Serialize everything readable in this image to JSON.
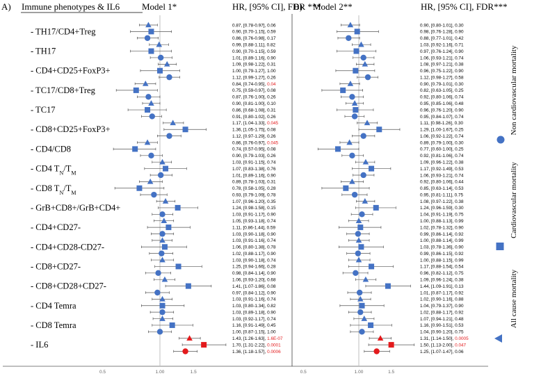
{
  "panels": [
    {
      "letter": "A)",
      "title": "Model 1*",
      "stat_header": "HR, [95% CI], FDR ***",
      "label_header": "Immune phenotypes & IL6"
    },
    {
      "letter": "B)",
      "title": "Model 2**",
      "stat_header": "HR, [95% CI], FDR***"
    }
  ],
  "legend": {
    "non_cv": "Non cardiovascular mortality",
    "cv": "Cardiovascular mortality",
    "all": "All cause mortality"
  },
  "colors": {
    "blue": "#4472c4",
    "red": "#e31a1c",
    "ref_line": "#bfbfbf"
  },
  "chart_data": {
    "type": "forest",
    "xscale": "log",
    "xlim": [
      0.3,
      2.5
    ],
    "ticks": [
      {
        "value": 0.5,
        "label": "0.5"
      },
      {
        "value": 1.0,
        "label": "1.00"
      },
      {
        "value": 1.5,
        "label": "1.5"
      }
    ],
    "reference_line": 1.0,
    "groups": [
      "- TH17/CD4+Treg",
      "- TH17",
      "- CD4+CD25+FoxP3+",
      "- TC17/CD8+Treg",
      "- TC17",
      "- CD8+CD25+FoxP3+",
      "- CD4/CD8",
      "- CD4 TN/TM",
      "- CD8 TN/TM",
      "- GrB+CD8+/GrB+CD4+",
      "- CD4+CD27-",
      "- CD4+CD28-CD27-",
      "- CD8+CD27-",
      "- CD8+CD28+CD27-",
      "- CD4 Temra",
      "- CD8 Temra",
      "- IL6"
    ],
    "row_outcome_order": [
      "non-cardiovascular",
      "cardiovascular",
      "all-cause"
    ],
    "model1": [
      {
        "hr": 0.87,
        "lo": 0.78,
        "hi": 0.97,
        "fdr": "0.06",
        "text": "0.87, [0.78-0.97], 0.06"
      },
      {
        "hr": 0.9,
        "lo": 0.7,
        "hi": 1.15,
        "fdr": "0.59",
        "text": "0.90, [0.70-1.15], 0.59"
      },
      {
        "hr": 0.86,
        "lo": 0.76,
        "hi": 0.98,
        "fdr": "0.17",
        "text": "0.86, [0.76-0.98], 0.17"
      },
      {
        "hr": 0.99,
        "lo": 0.88,
        "hi": 1.11,
        "fdr": "0.82",
        "text": "0.99, [0.88-1.11], 0.82"
      },
      {
        "hr": 0.9,
        "lo": 0.7,
        "hi": 1.15,
        "fdr": "0.59",
        "text": "0.90, [0.70-1.15], 0.59"
      },
      {
        "hr": 1.01,
        "lo": 0.89,
        "hi": 1.16,
        "fdr": "0.90",
        "text": "1.01, [0.89-1.16], 0.90"
      },
      {
        "hr": 1.09,
        "lo": 0.98,
        "hi": 1.22,
        "fdr": "0.31",
        "text": "1.09, [0.98-1.22], 0.31"
      },
      {
        "hr": 1.0,
        "lo": 0.79,
        "hi": 1.27,
        "fdr": "1.00",
        "text": "1.00, [0.79-1.27], 1.00"
      },
      {
        "hr": 1.12,
        "lo": 0.99,
        "hi": 1.27,
        "fdr": "0.26",
        "text": "1.12, [0.99-1.27], 0.26"
      },
      {
        "hr": 0.84,
        "lo": 0.74,
        "hi": 0.95,
        "fdr": "0.04",
        "text": "0.84, [0.74-0.95], ",
        "sig": true
      },
      {
        "hr": 0.75,
        "lo": 0.59,
        "hi": 0.97,
        "fdr": "0.08",
        "text": "0.75, [0.59-0.97], 0.08"
      },
      {
        "hr": 0.87,
        "lo": 0.76,
        "hi": 1.0,
        "fdr": "0.26",
        "text": "0.87, [0.76-1.00], 0.26"
      },
      {
        "hr": 0.9,
        "lo": 0.81,
        "hi": 1.0,
        "fdr": "0.10",
        "text": "0.90, [0.81-1.00], 0.10"
      },
      {
        "hr": 0.86,
        "lo": 0.68,
        "hi": 1.08,
        "fdr": "0.31",
        "text": "0.86, [0.68-1.08], 0.31"
      },
      {
        "hr": 0.91,
        "lo": 0.8,
        "hi": 1.02,
        "fdr": "0.26",
        "text": "0.91, [0.80-1.02], 0.26"
      },
      {
        "hr": 1.17,
        "lo": 1.04,
        "hi": 1.33,
        "fdr": "0.045",
        "text": "1.17, [1.04-1.33], ",
        "sig": true
      },
      {
        "hr": 1.36,
        "lo": 1.05,
        "hi": 1.75,
        "fdr": "0.08",
        "text": "1.36, [1.05-1.75], 0.08"
      },
      {
        "hr": 1.12,
        "lo": 0.97,
        "hi": 1.29,
        "fdr": "0.26",
        "text": "1.12, [0.97-1.29], 0.26"
      },
      {
        "hr": 0.86,
        "lo": 0.76,
        "hi": 0.97,
        "fdr": "0.045",
        "text": "0.86, [0.76-0.97], ",
        "sig": true
      },
      {
        "hr": 0.74,
        "lo": 0.57,
        "hi": 0.95,
        "fdr": "0.08",
        "text": "0.74, [0.57-0.95], 0.08"
      },
      {
        "hr": 0.9,
        "lo": 0.79,
        "hi": 1.03,
        "fdr": "0.26",
        "text": "0.90, [0.79-1.03], 0.26"
      },
      {
        "hr": 1.03,
        "lo": 0.91,
        "hi": 1.15,
        "fdr": "0.74",
        "text": "1.03, [0.91-1.15], 0.74"
      },
      {
        "hr": 1.07,
        "lo": 0.83,
        "hi": 1.38,
        "fdr": "0.76",
        "text": "1.07, [0.83-1.38], 0.76"
      },
      {
        "hr": 1.01,
        "lo": 0.89,
        "hi": 1.16,
        "fdr": "0.90",
        "text": "1.01, [0.89-1.16], 0.90"
      },
      {
        "hr": 0.89,
        "lo": 0.78,
        "hi": 1.03,
        "fdr": "0.31",
        "text": "0.89, [0.78-1.03], 0.31"
      },
      {
        "hr": 0.78,
        "lo": 0.58,
        "hi": 1.05,
        "fdr": "0.28",
        "text": "0.78, [0.58-1.05], 0.28"
      },
      {
        "hr": 0.93,
        "lo": 0.79,
        "hi": 1.09,
        "fdr": "0.78",
        "text": "0.93, [0.79-1.09], 0.78"
      },
      {
        "hr": 1.07,
        "lo": 0.96,
        "hi": 1.2,
        "fdr": "0.35",
        "text": "1.07, [0.96-1.20], 0.35"
      },
      {
        "hr": 1.24,
        "lo": 0.98,
        "hi": 1.58,
        "fdr": "0.15",
        "text": "1.24, [0.98-1.58], 0.15"
      },
      {
        "hr": 1.03,
        "lo": 0.91,
        "hi": 1.17,
        "fdr": "0.90",
        "text": "1.03, [0.91-1.17], 0.90"
      },
      {
        "hr": 1.05,
        "lo": 0.93,
        "hi": 1.18,
        "fdr": "0.74",
        "text": "1.05, [0.93-1.18], 0.74"
      },
      {
        "hr": 1.11,
        "lo": 0.86,
        "hi": 1.44,
        "fdr": "0.59",
        "text": "1.11, [0.86-1.44], 0.59"
      },
      {
        "hr": 1.03,
        "lo": 0.9,
        "hi": 1.18,
        "fdr": "0.90",
        "text": "1.03, [0.90-1.18], 0.90"
      },
      {
        "hr": 1.03,
        "lo": 0.91,
        "hi": 1.16,
        "fdr": "0.74",
        "text": "1.03, [0.91-1.16], 0.74"
      },
      {
        "hr": 1.06,
        "lo": 0.8,
        "hi": 1.38,
        "fdr": "0.78",
        "text": "1.06, [0.80-1.38], 0.78"
      },
      {
        "hr": 1.02,
        "lo": 0.88,
        "hi": 1.17,
        "fdr": "0.90",
        "text": "1.02, [0.88-1.17], 0.90"
      },
      {
        "hr": 1.03,
        "lo": 0.9,
        "hi": 1.18,
        "fdr": "0.74",
        "text": "1.03, [0.90-1.18], 0.74"
      },
      {
        "hr": 1.25,
        "lo": 0.94,
        "hi": 1.66,
        "fdr": "0.28",
        "text": "1.25, [0.94-1.66], 0.28"
      },
      {
        "hr": 0.98,
        "lo": 0.84,
        "hi": 1.14,
        "fdr": "0.90",
        "text": "0.98, [0.84-1.14], 0.90"
      },
      {
        "hr": 1.06,
        "lo": 0.93,
        "hi": 1.2,
        "fdr": "0.68",
        "text": "1.06, [0.93-1.20], 0.68"
      },
      {
        "hr": 1.41,
        "lo": 1.07,
        "hi": 1.86,
        "fdr": "0.08",
        "text": "1.41, [1.07-1.86], 0.08"
      },
      {
        "hr": 0.97,
        "lo": 0.84,
        "hi": 1.12,
        "fdr": "0.90",
        "text": "0.97, [0.84-1.12], 0.90"
      },
      {
        "hr": 1.03,
        "lo": 0.91,
        "hi": 1.16,
        "fdr": "0.74",
        "text": "1.03, [0.91-1.16], 0.74"
      },
      {
        "hr": 1.03,
        "lo": 0.8,
        "hi": 1.34,
        "fdr": "0.82",
        "text": "1.03, [0.80-1.34], 0.82"
      },
      {
        "hr": 1.03,
        "lo": 0.89,
        "hi": 1.18,
        "fdr": "0.90",
        "text": "1.03, [0.89-1.18], 0.90"
      },
      {
        "hr": 1.03,
        "lo": 0.92,
        "hi": 1.17,
        "fdr": "0.74",
        "text": "1.03, [0.92-1.17], 0.74"
      },
      {
        "hr": 1.16,
        "lo": 0.91,
        "hi": 1.49,
        "fdr": "0.45",
        "text": "1.16, [0.91-1.49], 0.45"
      },
      {
        "hr": 1.0,
        "lo": 0.87,
        "hi": 1.15,
        "fdr": "1.00",
        "text": "1.00, [0.87-1.15], 1.00"
      },
      {
        "hr": 1.43,
        "lo": 1.26,
        "hi": 1.63,
        "fdr": "1.6E-07",
        "text": "1.43, [1.26-1.63], ",
        "sig": true
      },
      {
        "hr": 1.7,
        "lo": 1.31,
        "hi": 2.22,
        "fdr": "0.0001",
        "text": "1.70, [1.31-2.22], ",
        "sig": true
      },
      {
        "hr": 1.36,
        "lo": 1.18,
        "hi": 1.57,
        "fdr": "0.0006",
        "text": "1.36, [1.18-1.57], ",
        "sig": true
      }
    ],
    "model2": [
      {
        "hr": 0.9,
        "lo": 0.8,
        "hi": 1.01,
        "fdr": "0.30",
        "text": "0.90, [0.80-1.01], 0.30"
      },
      {
        "hr": 0.98,
        "lo": 0.76,
        "hi": 1.28,
        "fdr": "0.90",
        "text": "0.98, [0.76-1.28], 0.90"
      },
      {
        "hr": 0.88,
        "lo": 0.77,
        "hi": 1.01,
        "fdr": "0.42",
        "text": "0.88, [0.77-1.01], 0.42"
      },
      {
        "hr": 1.03,
        "lo": 0.92,
        "hi": 1.16,
        "fdr": "0.71",
        "text": "1.03, [0.92-1.16], 0.71"
      },
      {
        "hr": 0.97,
        "lo": 0.76,
        "hi": 1.24,
        "fdr": "0.90",
        "text": "0.97, [0.76-1.24], 0.90"
      },
      {
        "hr": 1.06,
        "lo": 0.93,
        "hi": 1.21,
        "fdr": "0.74",
        "text": "1.06, [0.93-1.21], 0.74"
      },
      {
        "hr": 1.08,
        "lo": 0.97,
        "hi": 1.21,
        "fdr": "0.38",
        "text": "1.08, [0.97-1.21], 0.38"
      },
      {
        "hr": 0.96,
        "lo": 0.75,
        "hi": 1.22,
        "fdr": "0.90",
        "text": "0.96, [0.75-1.22], 0.90"
      },
      {
        "hr": 1.12,
        "lo": 0.98,
        "hi": 1.27,
        "fdr": "0.58",
        "text": "1.12, [0.98-1.27], 0.58"
      },
      {
        "hr": 0.9,
        "lo": 0.79,
        "hi": 1.01,
        "fdr": "0.30",
        "text": "0.90, [0.79-1.01], 0.30"
      },
      {
        "hr": 0.82,
        "lo": 0.63,
        "hi": 1.05,
        "fdr": "0.25",
        "text": "0.82, [0.63-1.05], 0.25"
      },
      {
        "hr": 0.92,
        "lo": 0.8,
        "hi": 1.06,
        "fdr": "0.74",
        "text": "0.92, [0.80-1.06], 0.74"
      },
      {
        "hr": 0.95,
        "lo": 0.85,
        "hi": 1.06,
        "fdr": "0.48",
        "text": "0.95, [0.85-1.06], 0.48"
      },
      {
        "hr": 0.96,
        "lo": 0.76,
        "hi": 1.2,
        "fdr": "0.90",
        "text": "0.96, [0.76-1.20], 0.90"
      },
      {
        "hr": 0.95,
        "lo": 0.84,
        "hi": 1.07,
        "fdr": "0.74",
        "text": "0.95, [0.84-1.07], 0.74"
      },
      {
        "hr": 1.11,
        "lo": 0.98,
        "hi": 1.26,
        "fdr": "0.30",
        "text": "1.11, [0.98-1.26], 0.30"
      },
      {
        "hr": 1.29,
        "lo": 1.0,
        "hi": 1.67,
        "fdr": "0.25",
        "text": "1.29, [1.00-1.67], 0.25"
      },
      {
        "hr": 1.06,
        "lo": 0.92,
        "hi": 1.22,
        "fdr": "0.74",
        "text": "1.06, [0.92-1.22], 0.74"
      },
      {
        "hr": 0.89,
        "lo": 0.79,
        "hi": 1.0,
        "fdr": "0.30",
        "text": "0.89, [0.79-1.00], 0.30"
      },
      {
        "hr": 0.77,
        "lo": 0.6,
        "hi": 1.0,
        "fdr": "0.25",
        "text": "0.77, [0.60-1.00], 0.25"
      },
      {
        "hr": 0.92,
        "lo": 0.81,
        "hi": 1.06,
        "fdr": "0.74",
        "text": "0.92, [0.81-1.06], 0.74"
      },
      {
        "hr": 1.09,
        "lo": 0.96,
        "hi": 1.22,
        "fdr": "0.38",
        "text": "1.09, [0.96-1.22], 0.38"
      },
      {
        "hr": 1.17,
        "lo": 0.92,
        "hi": 1.49,
        "fdr": "0.53",
        "text": "1.17, [0.92-1.49], 0.53"
      },
      {
        "hr": 1.06,
        "lo": 0.93,
        "hi": 1.21,
        "fdr": "0.74",
        "text": "1.06, [0.93-1.21], 0.74"
      },
      {
        "hr": 0.92,
        "lo": 0.8,
        "hi": 1.06,
        "fdr": "0.44",
        "text": "0.92, [0.80-1.06], 0.44"
      },
      {
        "hr": 0.85,
        "lo": 0.63,
        "hi": 1.14,
        "fdr": "0.53",
        "text": "0.85, [0.63-1.14], 0.53"
      },
      {
        "hr": 0.95,
        "lo": 0.81,
        "hi": 1.11,
        "fdr": "0.75",
        "text": "0.95, [0.81-1.11], 0.75"
      },
      {
        "hr": 1.08,
        "lo": 0.97,
        "hi": 1.22,
        "fdr": "0.38",
        "text": "1.08, [0.97-1.22], 0.38"
      },
      {
        "hr": 1.24,
        "lo": 0.96,
        "hi": 1.59,
        "fdr": "0.30",
        "text": "1.24, [0.96-1.59], 0.30"
      },
      {
        "hr": 1.04,
        "lo": 0.91,
        "hi": 1.19,
        "fdr": "0.75",
        "text": "1.04, [0.91-1.19], 0.75"
      },
      {
        "hr": 1.0,
        "lo": 0.88,
        "hi": 1.13,
        "fdr": "0.99",
        "text": "1.00, [0.88-1.13], 0.99"
      },
      {
        "hr": 1.02,
        "lo": 0.78,
        "hi": 1.32,
        "fdr": "0.90",
        "text": "1.02, [0.78-1.32], 0.90"
      },
      {
        "hr": 0.99,
        "lo": 0.86,
        "hi": 1.14,
        "fdr": "0.92",
        "text": "0.99, [0.86-1.14], 0.92"
      },
      {
        "hr": 1.0,
        "lo": 0.88,
        "hi": 1.14,
        "fdr": "0.99",
        "text": "1.00, [0.88-1.14], 0.99"
      },
      {
        "hr": 1.03,
        "lo": 0.78,
        "hi": 1.36,
        "fdr": "0.90",
        "text": "1.03, [0.78-1.36], 0.90"
      },
      {
        "hr": 0.99,
        "lo": 0.86,
        "hi": 1.15,
        "fdr": "0.92",
        "text": "0.99, [0.86-1.15], 0.92"
      },
      {
        "hr": 1.0,
        "lo": 0.88,
        "hi": 1.15,
        "fdr": "0.99",
        "text": "1.00, [0.88-1.15], 0.99"
      },
      {
        "hr": 1.17,
        "lo": 0.88,
        "hi": 1.54,
        "fdr": "0.54",
        "text": "1.17, [0.88-1.54], 0.54"
      },
      {
        "hr": 0.96,
        "lo": 0.82,
        "hi": 1.12,
        "fdr": "0.75",
        "text": "0.96, [0.82-1.12], 0.75"
      },
      {
        "hr": 1.09,
        "lo": 0.96,
        "hi": 1.24,
        "fdr": "0.38",
        "text": "1.09, [0.96-1.24], 0.38"
      },
      {
        "hr": 1.44,
        "lo": 1.09,
        "hi": 1.91,
        "fdr": "0.13",
        "text": "1.44, [1.09-1.91], 0.13"
      },
      {
        "hr": 1.01,
        "lo": 0.87,
        "hi": 1.17,
        "fdr": "0.92",
        "text": "1.01, [0.87-1.17], 0.92"
      },
      {
        "hr": 1.02,
        "lo": 0.9,
        "hi": 1.16,
        "fdr": "0.88",
        "text": "1.02, [0.90-1.16], 0.88"
      },
      {
        "hr": 1.04,
        "lo": 0.79,
        "hi": 1.37,
        "fdr": "0.90",
        "text": "1.04, [0.79-1.37], 0.90"
      },
      {
        "hr": 1.02,
        "lo": 0.88,
        "hi": 1.17,
        "fdr": "0.92",
        "text": "1.02, [0.88-1.17], 0.92"
      },
      {
        "hr": 1.07,
        "lo": 0.94,
        "hi": 1.21,
        "fdr": "0.48",
        "text": "1.07, [0.94-1.21], 0.48"
      },
      {
        "hr": 1.16,
        "lo": 0.9,
        "hi": 1.51,
        "fdr": "0.53",
        "text": "1.16, [0.90-1.51], 0.53"
      },
      {
        "hr": 1.04,
        "lo": 0.9,
        "hi": 1.2,
        "fdr": "0.75",
        "text": "1.04, [0.90-1.20], 0.75"
      },
      {
        "hr": 1.31,
        "lo": 1.14,
        "hi": 1.5,
        "fdr": "0.0005",
        "text": "1.31, [1.14-1.50], ",
        "sig": true
      },
      {
        "hr": 1.5,
        "lo": 1.13,
        "hi": 2.0,
        "fdr": "0.047",
        "text": "1.50, [1.13-2.00], ",
        "sig": true
      },
      {
        "hr": 1.25,
        "lo": 1.07,
        "hi": 1.47,
        "fdr": "0.06",
        "text": "1.25, [1.07-1.47], 0.06"
      }
    ]
  }
}
